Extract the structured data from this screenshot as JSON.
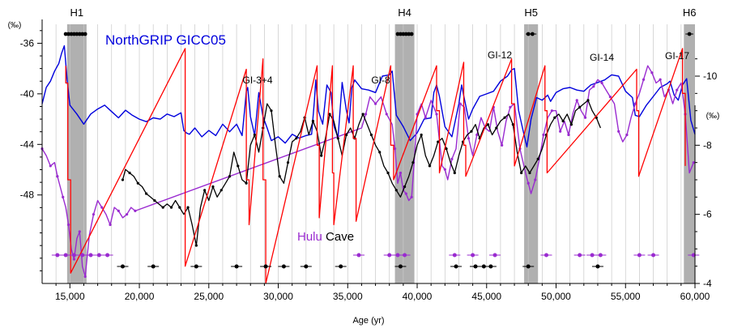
{
  "chart_data": {
    "type": "line",
    "xlabel": "Age (yr)",
    "xlim": [
      13000,
      60000
    ],
    "x_ticks": [
      15000,
      20000,
      25000,
      30000,
      35000,
      40000,
      45000,
      50000,
      55000,
      60000
    ],
    "x_tick_labels": [
      "15,000",
      "20,000",
      "25,000",
      "30,000",
      "35,000",
      "40,000",
      "45,000",
      "50,000",
      "55,000",
      "60,000"
    ],
    "left_axis": {
      "unit_label": "(‰)",
      "lim": [
        -55,
        -34.5
      ],
      "ticks": [
        -36,
        -40,
        -44,
        -48
      ],
      "tick_labels": [
        "-36",
        "-40",
        "-44",
        "-48"
      ]
    },
    "right_axis": {
      "unit_label": "(‰)",
      "lim": [
        -4,
        -11.5
      ],
      "ticks": [
        -10,
        -8,
        -6,
        -4
      ],
      "tick_labels": [
        "-10",
        "-8",
        "-6",
        "-4"
      ]
    },
    "heinrich_events": [
      {
        "name": "H1",
        "start": 14800,
        "end": 16200,
        "ages": [
          14700,
          14900,
          15100,
          15300,
          15500,
          15700,
          15900,
          16100
        ]
      },
      {
        "name": "H4",
        "start": 38400,
        "end": 39800,
        "ages": [
          38600,
          38800,
          39000,
          39200,
          39400,
          39600
        ]
      },
      {
        "name": "H5",
        "start": 47700,
        "end": 48700,
        "ages": [
          48000,
          48300
        ]
      },
      {
        "name": "H6",
        "start": 59200,
        "end": 60000,
        "ages": [
          59600
        ]
      }
    ],
    "interstadial_labels": [
      "GI-3+4",
      "GI-8",
      "GI-12",
      "GI-14",
      "GI-17"
    ],
    "series": [
      {
        "name": "NorthGRIP GICC05",
        "axis": "left",
        "color": "#0000dd",
        "x": [
          13000,
          13300,
          13600,
          13900,
          14200,
          14400,
          14600,
          14800,
          15000,
          15500,
          16000,
          16500,
          17000,
          17500,
          18000,
          18500,
          19000,
          19500,
          20000,
          20500,
          21000,
          21500,
          22000,
          22500,
          23000,
          23200,
          23400,
          23600,
          24000,
          24500,
          25000,
          25500,
          26000,
          26500,
          27000,
          27400,
          27600,
          27700,
          27800,
          28000,
          28300,
          28600,
          28900,
          29200,
          29500,
          30000,
          30500,
          31000,
          31500,
          32000,
          32400,
          32600,
          32700,
          32900,
          33200,
          33500,
          33800,
          34000,
          34300,
          34600,
          34900,
          35100,
          35300,
          35500,
          36000,
          36500,
          37000,
          37500,
          38000,
          38200,
          38500,
          39000,
          39500,
          40000,
          40500,
          41000,
          41200,
          41400,
          41600,
          42000,
          42500,
          43000,
          43200,
          43400,
          43700,
          44000,
          44500,
          45000,
          45500,
          46000,
          46500,
          46800,
          47000,
          47300,
          47600,
          47900,
          48200,
          48600,
          49000,
          49400,
          49600,
          50000,
          50500,
          51000,
          51500,
          52000,
          52500,
          53000,
          53500,
          54000,
          54500,
          55000,
          55500,
          55700,
          56000,
          56500,
          57000,
          57500,
          58000,
          58200,
          58500,
          58800,
          59100,
          59400,
          59700,
          60000
        ],
        "y": [
          -40.8,
          -39.5,
          -39.0,
          -38.2,
          -37.6,
          -36.8,
          -36.2,
          -38.9,
          -40.9,
          -41.6,
          -42.4,
          -41.6,
          -41.2,
          -40.9,
          -41.4,
          -41.9,
          -41.3,
          -41.7,
          -42.0,
          -42.2,
          -41.9,
          -42.0,
          -41.6,
          -41.8,
          -41.5,
          -42.9,
          -43.1,
          -43.2,
          -42.7,
          -43.4,
          -42.9,
          -43.3,
          -42.4,
          -43.0,
          -42.4,
          -43.3,
          -41.0,
          -39.8,
          -39.5,
          -41.8,
          -43.3,
          -39.9,
          -41.8,
          -42.7,
          -43.7,
          -43.4,
          -43.9,
          -43.2,
          -43.5,
          -43.3,
          -43.2,
          -40.6,
          -38.9,
          -41.4,
          -42.4,
          -39.3,
          -39.9,
          -42.5,
          -43.5,
          -39.1,
          -41.3,
          -42.3,
          -39.5,
          -38.9,
          -39.6,
          -39.7,
          -39.9,
          -38.6,
          -38.5,
          -38.2,
          -41.7,
          -42.6,
          -43.7,
          -43.1,
          -42.0,
          -41.9,
          -39.9,
          -39.3,
          -40.2,
          -42.6,
          -43.4,
          -40.8,
          -39.3,
          -40.4,
          -42.0,
          -41.2,
          -40.2,
          -40.0,
          -39.8,
          -39.0,
          -38.6,
          -38.1,
          -38.0,
          -41.3,
          -42.8,
          -44.2,
          -42.0,
          -40.3,
          -40.5,
          -40.1,
          -40.6,
          -39.9,
          -39.6,
          -39.5,
          -39.7,
          -39.8,
          -39.3,
          -39.1,
          -38.9,
          -38.5,
          -38.6,
          -39.8,
          -40.3,
          -41.7,
          -41.8,
          -40.9,
          -40.2,
          -39.5,
          -39.2,
          -39.0,
          -40.1,
          -40.5,
          -39.3,
          -38.8,
          -42.1,
          -43.2
        ]
      },
      {
        "name": "Hulu",
        "axis": "right",
        "color": "#9a2bd0",
        "x": [
          13000,
          13300,
          13600,
          13900,
          14100,
          14300,
          14500,
          14700,
          14900,
          15100,
          15300,
          15500,
          15700,
          15900,
          16100,
          16400,
          16700,
          17000,
          17300,
          17600,
          17900,
          18200,
          18500,
          18800,
          19100,
          19400,
          19700,
          36000,
          36300,
          36600,
          37000,
          37400,
          37800,
          38200,
          38400,
          38600,
          38800,
          39000,
          39200,
          39400,
          39600,
          39800,
          40000,
          40300,
          40600,
          41000,
          41400,
          41800,
          42000,
          42200,
          42500,
          42800,
          43100,
          43400,
          43700,
          44000,
          44300,
          44600,
          44900,
          45200,
          45500,
          45800,
          46100,
          46400,
          46700,
          47000,
          47400,
          47800,
          48000,
          48200,
          48500,
          48800,
          49100,
          49400,
          49700,
          50000,
          50300,
          50600,
          50900,
          51200,
          51500,
          51800,
          52100,
          52400,
          52700,
          53000,
          53300,
          53600,
          53900,
          54200,
          54500,
          54800,
          55100,
          55400,
          55700,
          56000,
          56300,
          56600,
          56900,
          57200,
          57500,
          57800,
          58100,
          58400,
          58700,
          59000,
          59300,
          59600,
          59900
        ],
        "y": [
          -7.9,
          -7.7,
          -7.4,
          -7.5,
          -7.1,
          -6.8,
          -6.5,
          -6.2,
          -5.7,
          -5.0,
          -4.7,
          -5.3,
          -5.5,
          -4.5,
          -4.2,
          -5.4,
          -6.0,
          -6.4,
          -6.2,
          -6.0,
          -5.7,
          -6.2,
          -6.1,
          -5.9,
          -6.0,
          -6.2,
          -6.1,
          -8.5,
          -8.9,
          -9.4,
          -9.2,
          -9.4,
          -8.9,
          -8.6,
          -7.9,
          -6.9,
          -7.2,
          -6.7,
          -6.6,
          -6.4,
          -6.5,
          -7.6,
          -8.9,
          -9.2,
          -8.8,
          -9.3,
          -8.9,
          -7.4,
          -7.3,
          -7.0,
          -7.6,
          -7.9,
          -9.2,
          -9.1,
          -8.2,
          -7.7,
          -8.3,
          -8.8,
          -8.5,
          -8.4,
          -9.1,
          -8.4,
          -8.0,
          -8.7,
          -9.1,
          -9.2,
          -7.9,
          -7.2,
          -6.9,
          -6.6,
          -7.0,
          -7.6,
          -8.3,
          -8.8,
          -9.0,
          -9.0,
          -8.4,
          -8.7,
          -8.3,
          -8.9,
          -9.3,
          -9.0,
          -8.8,
          -9.6,
          -9.7,
          -9.9,
          -9.8,
          -9.6,
          -9.4,
          -9.2,
          -8.4,
          -8.1,
          -8.3,
          -8.8,
          -9.2,
          -9.5,
          -9.9,
          -10.3,
          -10.1,
          -9.8,
          -9.9,
          -9.4,
          -9.6,
          -9.2,
          -9.6,
          -9.8,
          -8.9,
          -7.2,
          -7.5
        ]
      },
      {
        "name": "Cave",
        "axis": "right",
        "color": "#000000",
        "x": [
          18800,
          19000,
          19300,
          19600,
          19900,
          20200,
          20500,
          20800,
          21100,
          21400,
          21700,
          22000,
          22300,
          22600,
          22900,
          23200,
          23500,
          23800,
          24100,
          24400,
          24700,
          25000,
          25300,
          25600,
          25900,
          26200,
          26500,
          26800,
          27100,
          27400,
          27700,
          28000,
          28300,
          28600,
          28900,
          29200,
          29500,
          29800,
          30100,
          30400,
          30700,
          31000,
          31300,
          31600,
          31900,
          32200,
          32500,
          32800,
          33100,
          33400,
          33700,
          34000,
          34300,
          34600,
          34900,
          35200,
          35500,
          35800,
          36100,
          36400,
          36700,
          37000,
          37300,
          37600,
          37900,
          38200,
          38500,
          38800,
          39100,
          39400,
          39700,
          40000,
          40300,
          40600,
          40900,
          41200,
          41500,
          41800,
          42100,
          42400,
          42700,
          43000,
          43300,
          43600,
          43900,
          44200,
          44500,
          44800,
          45100,
          45400,
          45700,
          46000,
          46300,
          46600,
          46900,
          47200,
          47500,
          47800,
          48100,
          48400,
          48700,
          49000,
          49300,
          49600,
          49900,
          50200,
          50500,
          50800,
          51100,
          51400,
          51700,
          52000,
          52300,
          52600,
          52900,
          53200
        ],
        "y": [
          -7.0,
          -7.3,
          -7.2,
          -7.1,
          -6.9,
          -6.8,
          -6.6,
          -6.5,
          -6.4,
          -6.3,
          -6.2,
          -6.3,
          -6.2,
          -6.4,
          -6.2,
          -6.0,
          -6.2,
          -5.7,
          -5.1,
          -6.2,
          -6.7,
          -6.4,
          -6.8,
          -6.5,
          -6.7,
          -6.9,
          -7.1,
          -7.8,
          -7.4,
          -7.0,
          -6.9,
          -8.0,
          -8.3,
          -7.8,
          -8.5,
          -9.2,
          -9.0,
          -8.0,
          -7.1,
          -6.9,
          -7.5,
          -8.1,
          -8.2,
          -8.4,
          -8.8,
          -8.3,
          -8.7,
          -8.4,
          -7.7,
          -8.2,
          -8.9,
          -8.7,
          -8.2,
          -7.7,
          -8.3,
          -8.5,
          -8.2,
          -8.6,
          -8.9,
          -8.6,
          -8.3,
          -8.0,
          -7.8,
          -7.4,
          -7.2,
          -6.9,
          -6.7,
          -6.5,
          -6.8,
          -7.1,
          -7.5,
          -8.0,
          -8.3,
          -7.7,
          -7.4,
          -7.7,
          -8.1,
          -8.2,
          -7.9,
          -7.5,
          -7.2,
          -7.7,
          -8.1,
          -8.3,
          -8.4,
          -8.6,
          -8.2,
          -8.5,
          -8.6,
          -8.3,
          -8.5,
          -8.7,
          -8.8,
          -8.9,
          -8.6,
          -7.8,
          -7.2,
          -7.4,
          -7.2,
          -7.4,
          -7.6,
          -7.9,
          -8.3,
          -8.6,
          -8.8,
          -8.9,
          -8.7,
          -8.9,
          -8.6,
          -9.0,
          -9.1,
          -9.2,
          -9.3,
          -9.0,
          -8.8,
          -8.5
        ]
      },
      {
        "name": "",
        "axis": "right",
        "color": "#ff0000",
        "x": [
          14700,
          14700,
          14850,
          14850,
          15050,
          15050,
          23300,
          23300,
          23300,
          27700,
          27700,
          27900,
          27900,
          28900,
          28900,
          29100,
          29100,
          32800,
          32800,
          32950,
          32950,
          33900,
          33900,
          34000,
          34000,
          35400,
          35400,
          35600,
          35600,
          38100,
          38100,
          38300,
          38300,
          41400,
          41400,
          41600,
          41600,
          43350,
          43350,
          43500,
          43500,
          46800,
          46800,
          47000,
          47000,
          49200,
          49200,
          49350,
          49350,
          55800,
          55800,
          55950,
          55950,
          59100,
          59100,
          59300,
          59300
        ],
        "y": [
          -10.3,
          -9.8,
          -9.8,
          -7.0,
          -7.0,
          -4.3,
          -10.8,
          -4.5,
          -4.5,
          -10.2,
          -7.0,
          -7.0,
          -5.7,
          -10.5,
          -7.0,
          -7.0,
          -4.0,
          -10.3,
          -8.0,
          -8.0,
          -5.9,
          -10.3,
          -7.2,
          -7.2,
          -5.7,
          -10.3,
          -8.2,
          -8.2,
          -5.8,
          -10.3,
          -8.0,
          -8.0,
          -7.0,
          -10.3,
          -9.0,
          -9.0,
          -7.2,
          -10.4,
          -8.0,
          -8.0,
          -7.1,
          -10.5,
          -9.2,
          -9.2,
          -7.4,
          -10.3,
          -9.0,
          -9.0,
          -7.2,
          -10.2,
          -9.0,
          -9.0,
          -7.1,
          -10.8,
          -9.5,
          -9.5,
          -7.4
        ]
      }
    ],
    "series_legend": {
      "label_1": "Hulu",
      "label_2": "Cave",
      "color_1": "#9a2bd0",
      "color_2": "#000000"
    },
    "purple_dated_points": [
      14100,
      14700,
      15300,
      15900,
      16500,
      17100,
      17700,
      35800,
      38000,
      38600,
      39100,
      42700,
      44000,
      45600,
      49300,
      51700,
      52600,
      53200,
      56000,
      57000,
      59900
    ],
    "black_dated_points": [
      18800,
      21000,
      24100,
      27000,
      29100,
      30400,
      32000,
      34500,
      38800,
      42800,
      44200,
      44800,
      45300,
      48000,
      53000
    ]
  }
}
